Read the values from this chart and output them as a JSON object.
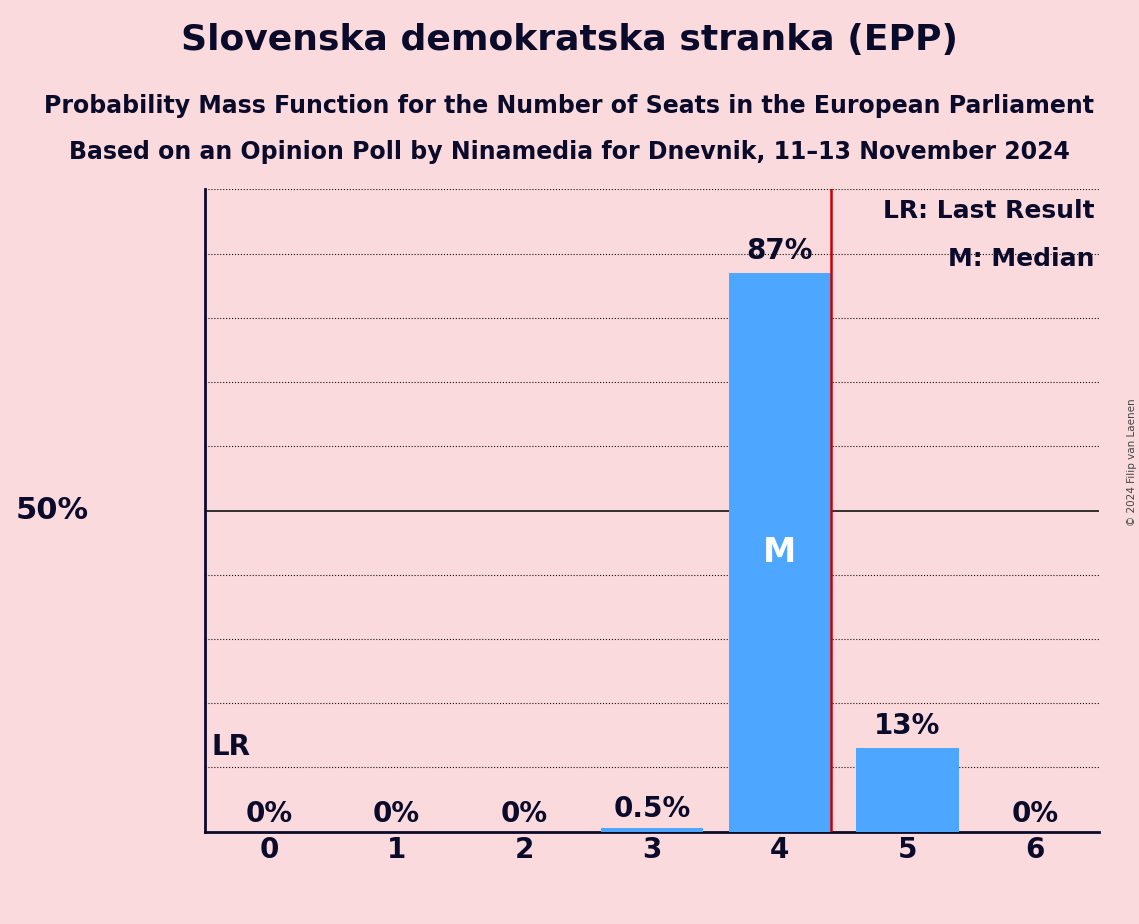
{
  "title": "Slovenska demokratska stranka (EPP)",
  "subtitle1": "Probability Mass Function for the Number of Seats in the European Parliament",
  "subtitle2": "Based on an Opinion Poll by Ninamedia for Dnevnik, 11–13 November 2024",
  "copyright": "© 2024 Filip van Laenen",
  "seats": [
    0,
    1,
    2,
    3,
    4,
    5,
    6
  ],
  "probabilities": [
    0.0,
    0.0,
    0.0,
    0.005,
    0.87,
    0.13,
    0.0
  ],
  "bar_color": "#4da6ff",
  "background_color": "#fadadd",
  "last_result": 4,
  "median": 4,
  "lr_line_color": "#cc0000",
  "ylim": [
    0,
    1.0
  ],
  "ylabel_50": "50%",
  "legend_lr": "LR: Last Result",
  "legend_m": "M: Median",
  "lr_label": "LR",
  "m_label": "M",
  "title_fontsize": 26,
  "subtitle_fontsize": 17,
  "bar_label_fontsize": 20,
  "axis_label_fontsize": 20,
  "ylabel_fontsize": 22,
  "legend_fontsize": 18,
  "m_fontsize": 24,
  "lr_label_fontsize": 20,
  "grid_color": "#111111",
  "axis_color": "#0a0a2a",
  "title_color": "#0a0a2a"
}
